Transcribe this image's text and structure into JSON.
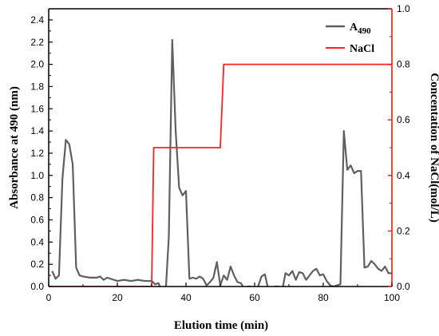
{
  "chart_data": {
    "type": "line",
    "xlabel": "Elution time (min)",
    "ylabel": "Absorbance at 490 (nm)",
    "ylabel_right": "Concentation of NaCl(mol/L)",
    "xlim": [
      0,
      100
    ],
    "ylim": [
      0,
      2.5
    ],
    "ylim_right": [
      0,
      1.0
    ],
    "x_ticks": [
      "0",
      "20",
      "40",
      "60",
      "80",
      "100"
    ],
    "y_ticks": [
      "0.0",
      "0.2",
      "0.4",
      "0.6",
      "0.8",
      "1.0",
      "1.2",
      "1.4",
      "1.6",
      "1.8",
      "2.0",
      "2.2",
      "2.4"
    ],
    "y_ticks_right": [
      "0.0",
      "0.2",
      "0.4",
      "0.6",
      "0.8",
      "1.0"
    ],
    "grid": false,
    "legend_position": "top-right",
    "colors": {
      "absorbance": "#5f5f5f",
      "nacl": "#ff2020",
      "right_axis": "#ff0000"
    },
    "series": [
      {
        "name": "A490",
        "legend_main": "A",
        "legend_sub": "490",
        "axis": "left",
        "x": [
          1,
          2,
          3,
          4,
          5,
          6,
          7,
          8,
          9,
          10,
          12,
          14,
          15,
          16,
          17,
          18,
          20,
          22,
          24,
          26,
          28,
          30,
          31,
          32,
          33,
          34,
          35,
          36,
          37,
          38,
          39,
          40,
          41,
          42,
          43,
          44,
          45,
          46,
          47,
          48,
          49,
          50,
          51,
          52,
          53,
          54,
          55,
          56,
          57,
          58,
          59,
          60,
          61,
          62,
          63,
          64,
          65,
          66,
          67,
          68,
          69,
          70,
          71,
          72,
          73,
          74,
          75,
          76,
          77,
          78,
          79,
          80,
          81,
          82,
          83,
          84,
          85,
          86,
          87,
          88,
          89,
          90,
          91,
          92,
          93,
          94,
          95,
          96,
          97,
          98,
          99,
          100
        ],
        "y": [
          0.14,
          0.07,
          0.1,
          0.97,
          1.32,
          1.28,
          1.1,
          0.17,
          0.1,
          0.09,
          0.08,
          0.08,
          0.09,
          0.06,
          0.08,
          0.07,
          0.05,
          0.06,
          0.05,
          0.06,
          0.05,
          0.05,
          0.02,
          0.03,
          -0.05,
          -0.1,
          0.45,
          2.22,
          1.4,
          0.89,
          0.82,
          0.86,
          0.07,
          0.08,
          0.07,
          0.09,
          0.07,
          0.01,
          0.04,
          0.08,
          0.22,
          0.01,
          0.1,
          0.06,
          0.18,
          0.1,
          0.04,
          0.03,
          -0.02,
          0.0,
          0.0,
          -0.05,
          0.0,
          0.09,
          0.11,
          -0.03,
          -0.05,
          0.0,
          0.0,
          -0.04,
          0.12,
          0.1,
          0.14,
          0.06,
          0.13,
          0.12,
          0.06,
          0.1,
          0.14,
          0.16,
          0.1,
          0.11,
          0.05,
          0.01,
          0.0,
          0.01,
          0.02,
          1.4,
          1.05,
          1.09,
          1.02,
          1.04,
          1.04,
          0.17,
          0.18,
          0.23,
          0.2,
          0.16,
          0.14,
          0.18,
          0.12,
          0.12
        ]
      },
      {
        "name": "NaCl",
        "axis": "right",
        "x": [
          0,
          30,
          30.6,
          50,
          51,
          100
        ],
        "y": [
          0,
          0,
          0.5,
          0.5,
          0.8,
          0.8
        ]
      }
    ]
  }
}
